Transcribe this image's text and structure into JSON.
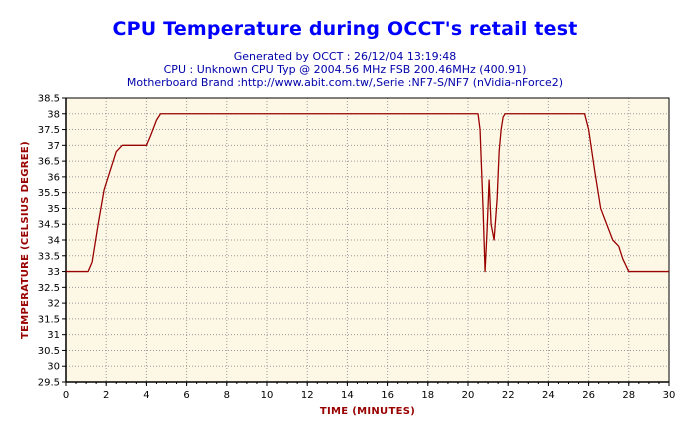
{
  "header": {
    "title": "CPU Temperature during OCCT's retail test",
    "generated": "Generated by OCCT : 26/12/04 13:19:48",
    "cpu": "CPU : Unknown CPU Typ @ 2004.56 MHz FSB 200.46MHz (400.91)",
    "motherboard": "Motherboard Brand :http://www.abit.com.tw/,Serie :NF7-S/NF7 (nVidia-nForce2)"
  },
  "colors": {
    "title": "#0000ff",
    "subtitle": "#0000aa",
    "plot_background": "#fdf8e6",
    "series_line": "#990000",
    "axis_title": "#990000",
    "gridline": "#999999"
  },
  "chart_data": {
    "type": "line",
    "title": "CPU Temperature during OCCT's retail test",
    "xlabel": "TIME (MINUTES)",
    "ylabel": "TEMPERATURE (CELSIUS DEGREE)",
    "xlim": [
      0,
      30
    ],
    "ylim": [
      29.5,
      38.5
    ],
    "x_ticks": [
      0,
      2,
      4,
      6,
      8,
      10,
      12,
      14,
      16,
      18,
      20,
      22,
      24,
      26,
      28,
      30
    ],
    "x_tick_labels": [
      "0",
      "2",
      "4",
      "6",
      "8",
      "10",
      "12",
      "14",
      "16",
      "18",
      "20",
      "22",
      "24",
      "26",
      "28",
      "30"
    ],
    "y_ticks": [
      29.5,
      30,
      30.5,
      31,
      31.5,
      32,
      32.5,
      33,
      33.5,
      34,
      34.5,
      35,
      35.5,
      36,
      36.5,
      37,
      37.5,
      38,
      38.5
    ],
    "y_tick_labels": [
      "29.5",
      "30",
      "30.5",
      "31",
      "31.5",
      "32",
      "32.5",
      "33",
      "33.5",
      "34",
      "34.5",
      "35",
      "35.5",
      "36",
      "36.5",
      "37",
      "37.5",
      "38",
      "38.5"
    ],
    "grid": "dotted",
    "series": [
      {
        "x": [
          0,
          1.1,
          1.3,
          1.6,
          1.9,
          2.2,
          2.5,
          2.8,
          3.2,
          4.0,
          4.2,
          4.5,
          4.7,
          20.5,
          20.6,
          20.75,
          20.85,
          20.95,
          21.05,
          21.15,
          21.3,
          21.45,
          21.55,
          21.65,
          21.75,
          21.85,
          22.0,
          25.8,
          26.0,
          26.3,
          26.6,
          26.9,
          27.2,
          27.5,
          27.7,
          28.0,
          28.2,
          30
        ],
        "y": [
          33,
          33,
          33.3,
          34.5,
          35.6,
          36.2,
          36.8,
          37,
          37,
          37,
          37.3,
          37.8,
          38,
          38,
          37.5,
          35.0,
          33.0,
          34.3,
          35.9,
          34.5,
          34.0,
          35.3,
          36.8,
          37.5,
          37.9,
          38,
          38,
          38,
          37.5,
          36.2,
          35.0,
          34.5,
          34.0,
          33.8,
          33.4,
          33.0,
          33,
          33
        ]
      }
    ]
  }
}
